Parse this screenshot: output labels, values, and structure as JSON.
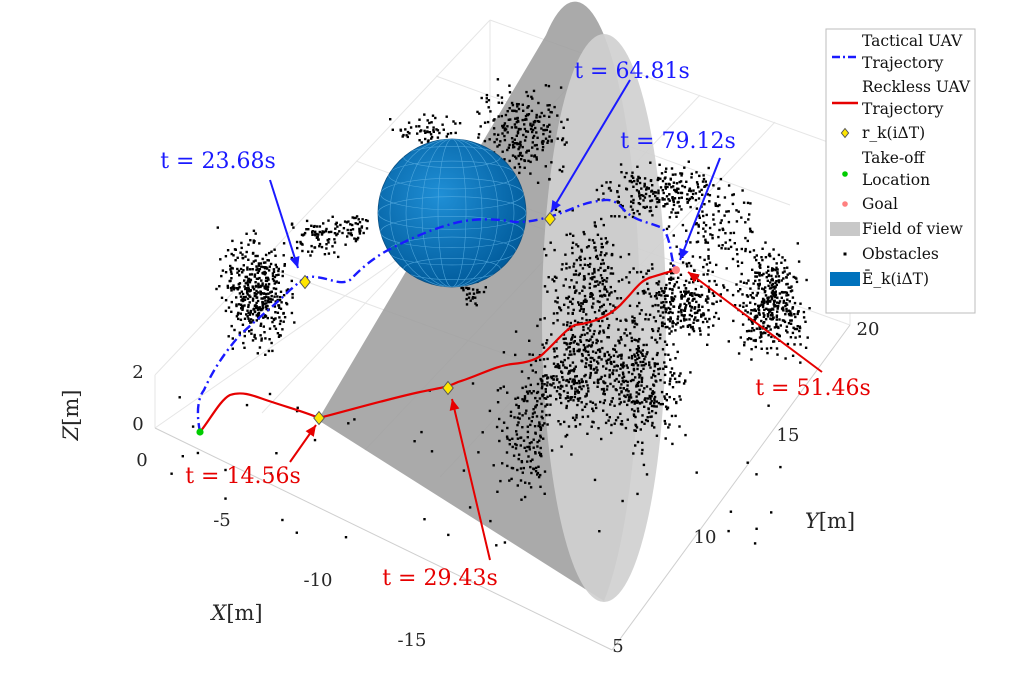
{
  "chart_data": {
    "type": "3d-trajectory",
    "axes": {
      "x": {
        "label": "X",
        "unit": "[m]",
        "ticks": [
          "0",
          "-5",
          "-10",
          "-15"
        ]
      },
      "y": {
        "label": "Y",
        "unit": "[m]",
        "ticks": [
          "5",
          "10",
          "15",
          "20"
        ]
      },
      "z": {
        "label": "Z",
        "unit": "[m]",
        "ticks": [
          "0",
          "2"
        ]
      }
    },
    "legend": {
      "placement": "top-right",
      "entries": [
        {
          "key": "tactical",
          "lines": [
            "Tactical UAV",
            "Trajectory"
          ],
          "color": "#1a1aff"
        },
        {
          "key": "reckless",
          "lines": [
            "Reckless UAV",
            "Trajectory"
          ],
          "color": "#e60000"
        },
        {
          "key": "reference",
          "lines": [
            "r_k(iΔT)"
          ],
          "color": "#ffe600"
        },
        {
          "key": "takeoff",
          "lines": [
            "Take-off",
            "Location"
          ],
          "color": "#00cc00"
        },
        {
          "key": "goal",
          "lines": [
            "Goal"
          ],
          "color": "#ff8080"
        },
        {
          "key": "fov",
          "lines": [
            "Field of view"
          ],
          "color": "#c8c8c8"
        },
        {
          "key": "obstacles",
          "lines": [
            "Obstacles"
          ],
          "color": "#000000"
        },
        {
          "key": "ellipsoid",
          "lines": [
            "Ē_k(iΔT)"
          ],
          "color": "#0072bd"
        }
      ]
    },
    "annotations": [
      {
        "text": "t = 64.81s",
        "color": "#1a1aff",
        "series": "tactical"
      },
      {
        "text": "t = 23.68s",
        "color": "#1a1aff",
        "series": "tactical"
      },
      {
        "text": "t = 79.12s",
        "color": "#1a1aff",
        "series": "tactical"
      },
      {
        "text": "t = 14.56s",
        "color": "#e60000",
        "series": "reckless"
      },
      {
        "text": "t = 29.43s",
        "color": "#e60000",
        "series": "reckless"
      },
      {
        "text": "t = 51.46s",
        "color": "#e60000",
        "series": "reckless"
      }
    ]
  }
}
